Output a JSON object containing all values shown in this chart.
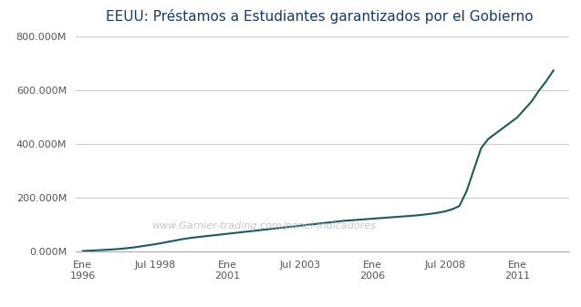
{
  "title": "EEUU: Préstamos a Estudiantes garantizados por el Gobierno",
  "watermark": "www.Garnier-trading.com/panel-indicadores",
  "line_color": "#1a5c5c",
  "background_color": "#ffffff",
  "grid_color": "#cccccc",
  "title_color": "#1a3a6b",
  "ytick_label_color": "#555555",
  "xtick_label_color": "#555555",
  "ylim": [
    0,
    800000
  ],
  "yticks": [
    0,
    200000,
    400000,
    600000,
    800000
  ],
  "ytick_labels": [
    "0.000M",
    "200.000M",
    "400.000M",
    "600.000M",
    "800.000M"
  ],
  "xtick_positions": [
    1996.0,
    1998.5,
    2001.0,
    2003.5,
    2006.0,
    2008.5,
    2011.0
  ],
  "xtick_labels": [
    "Ene\n1996",
    "Jul 1998",
    "Ene\n2001",
    "Jul 2003",
    "Ene\n2006",
    "Jul 2008",
    "Ene\n2011"
  ],
  "xlim_left": 1995.75,
  "xlim_right": 2012.8,
  "data_x": [
    1996.0,
    1996.25,
    1996.5,
    1996.75,
    1997.0,
    1997.25,
    1997.5,
    1997.75,
    1998.0,
    1998.25,
    1998.5,
    1998.75,
    1999.0,
    1999.25,
    1999.5,
    1999.75,
    2000.0,
    2000.25,
    2000.5,
    2000.75,
    2001.0,
    2001.25,
    2001.5,
    2001.75,
    2002.0,
    2002.25,
    2002.5,
    2002.75,
    2003.0,
    2003.25,
    2003.5,
    2003.75,
    2004.0,
    2004.25,
    2004.5,
    2004.75,
    2005.0,
    2005.25,
    2005.5,
    2005.75,
    2006.0,
    2006.25,
    2006.5,
    2006.75,
    2007.0,
    2007.25,
    2007.5,
    2007.75,
    2008.0,
    2008.25,
    2008.5,
    2008.75,
    2009.0,
    2009.25,
    2009.5,
    2009.75,
    2010.0,
    2010.25,
    2010.5,
    2010.75,
    2011.0,
    2011.25,
    2011.5,
    2011.75,
    2012.0,
    2012.25
  ],
  "data_y": [
    3000,
    4000,
    5500,
    7000,
    8500,
    10500,
    13000,
    16000,
    20000,
    24000,
    28000,
    33000,
    38000,
    43000,
    48000,
    52000,
    55000,
    58000,
    61000,
    64000,
    67000,
    70000,
    73000,
    76000,
    79000,
    82000,
    85000,
    88000,
    91000,
    94000,
    97000,
    100000,
    103000,
    106000,
    109000,
    112000,
    115000,
    117000,
    119000,
    121000,
    123000,
    125000,
    127000,
    129000,
    131000,
    133000,
    135000,
    138000,
    141000,
    145000,
    150000,
    158000,
    170000,
    225000,
    305000,
    385000,
    420000,
    440000,
    460000,
    480000,
    500000,
    530000,
    560000,
    600000,
    635000,
    675000
  ]
}
